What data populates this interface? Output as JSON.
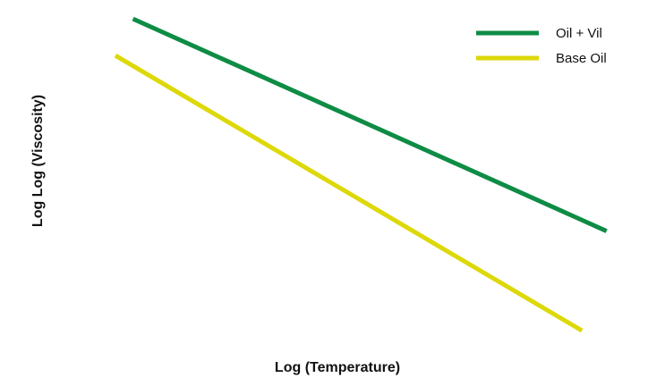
{
  "chart_data": {
    "type": "line",
    "title": "",
    "xlabel": "Log (Temperature)",
    "ylabel": "Log Log (Viscosity)",
    "xlim": [
      0,
      100
    ],
    "ylim": [
      0,
      100
    ],
    "grid": false,
    "legend_position": "top-right",
    "series": [
      {
        "name": "Oil + Vil",
        "color": "#0E8C45",
        "x": [
          3.5,
          97.8
        ],
        "y": [
          97.6,
          35.1
        ]
      },
      {
        "name": "Base Oil",
        "color": "#DDD808",
        "x": [
          0,
          92.9
        ],
        "y": [
          86.8,
          5.8
        ]
      }
    ]
  }
}
